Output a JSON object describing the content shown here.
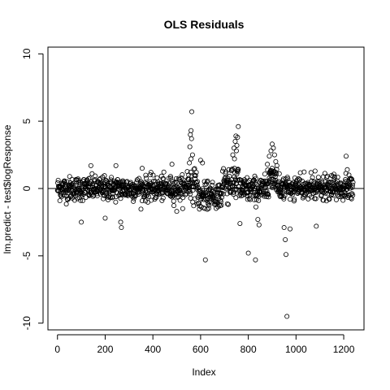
{
  "chart_data": {
    "type": "scatter",
    "title": "OLS Residuals",
    "xlabel": "Index",
    "ylabel": "lm.predict - test$logResponse",
    "xlim": [
      -40,
      1285
    ],
    "ylim": [
      -10.5,
      10.5
    ],
    "x_ticks": [
      0,
      200,
      400,
      600,
      800,
      1000,
      1200
    ],
    "x_tick_labels": [
      "0",
      "200",
      "400",
      "600",
      "800",
      "1000",
      "1200"
    ],
    "y_ticks": [
      -10,
      -5,
      0,
      5,
      10
    ],
    "y_tick_labels": [
      "-10",
      "-5",
      "0",
      "5",
      "10"
    ],
    "reference_line": 0,
    "grid": false,
    "legend": "none",
    "marker": "open-circle",
    "n_points": 1240,
    "segments": [
      {
        "from": 0,
        "to": 540,
        "center": 0.0,
        "spread": 0.55
      },
      {
        "from": 540,
        "to": 590,
        "center": 0.4,
        "spread": 0.8
      },
      {
        "from": 590,
        "to": 690,
        "center": -0.6,
        "spread": 0.6
      },
      {
        "from": 690,
        "to": 760,
        "center": 0.5,
        "spread": 1.0
      },
      {
        "from": 760,
        "to": 880,
        "center": -0.1,
        "spread": 0.6
      },
      {
        "from": 880,
        "to": 920,
        "center": 1.0,
        "spread": 0.8
      },
      {
        "from": 920,
        "to": 1240,
        "center": 0.0,
        "spread": 0.55
      }
    ],
    "notable_points": [
      {
        "x": 563,
        "y": 5.7
      },
      {
        "x": 560,
        "y": 4.3
      },
      {
        "x": 557,
        "y": 4.0
      },
      {
        "x": 562,
        "y": 3.7
      },
      {
        "x": 555,
        "y": 3.1
      },
      {
        "x": 566,
        "y": 2.5
      },
      {
        "x": 560,
        "y": 2.2
      },
      {
        "x": 553,
        "y": 1.9
      },
      {
        "x": 600,
        "y": 2.1
      },
      {
        "x": 608,
        "y": 1.9
      },
      {
        "x": 620,
        "y": -5.3
      },
      {
        "x": 735,
        "y": 2.5
      },
      {
        "x": 740,
        "y": 3.0
      },
      {
        "x": 745,
        "y": 3.5
      },
      {
        "x": 748,
        "y": 3.9
      },
      {
        "x": 752,
        "y": 3.2
      },
      {
        "x": 755,
        "y": 3.8
      },
      {
        "x": 758,
        "y": 4.6
      },
      {
        "x": 750,
        "y": 2.8
      },
      {
        "x": 742,
        "y": 2.2
      },
      {
        "x": 765,
        "y": -2.6
      },
      {
        "x": 800,
        "y": -4.8
      },
      {
        "x": 830,
        "y": -5.3
      },
      {
        "x": 840,
        "y": -2.3
      },
      {
        "x": 845,
        "y": -2.7
      },
      {
        "x": 880,
        "y": 1.8
      },
      {
        "x": 888,
        "y": 2.4
      },
      {
        "x": 895,
        "y": 2.8
      },
      {
        "x": 900,
        "y": 3.3
      },
      {
        "x": 905,
        "y": 3.0
      },
      {
        "x": 910,
        "y": 2.5
      },
      {
        "x": 915,
        "y": 2.0
      },
      {
        "x": 920,
        "y": 1.7
      },
      {
        "x": 900,
        "y": 1.5
      },
      {
        "x": 950,
        "y": -2.9
      },
      {
        "x": 955,
        "y": -3.8
      },
      {
        "x": 958,
        "y": -4.9
      },
      {
        "x": 962,
        "y": -9.5
      },
      {
        "x": 975,
        "y": -3.0
      },
      {
        "x": 100,
        "y": -2.5
      },
      {
        "x": 200,
        "y": -2.2
      },
      {
        "x": 265,
        "y": -2.5
      },
      {
        "x": 268,
        "y": -2.9
      },
      {
        "x": 140,
        "y": 1.7
      },
      {
        "x": 245,
        "y": 1.7
      },
      {
        "x": 355,
        "y": 1.5
      },
      {
        "x": 500,
        "y": -1.7
      },
      {
        "x": 480,
        "y": 1.8
      },
      {
        "x": 1085,
        "y": -2.8
      },
      {
        "x": 1080,
        "y": 1.3
      },
      {
        "x": 1210,
        "y": 2.4
      },
      {
        "x": 1215,
        "y": 1.4
      },
      {
        "x": 1222,
        "y": 1.0
      }
    ]
  }
}
